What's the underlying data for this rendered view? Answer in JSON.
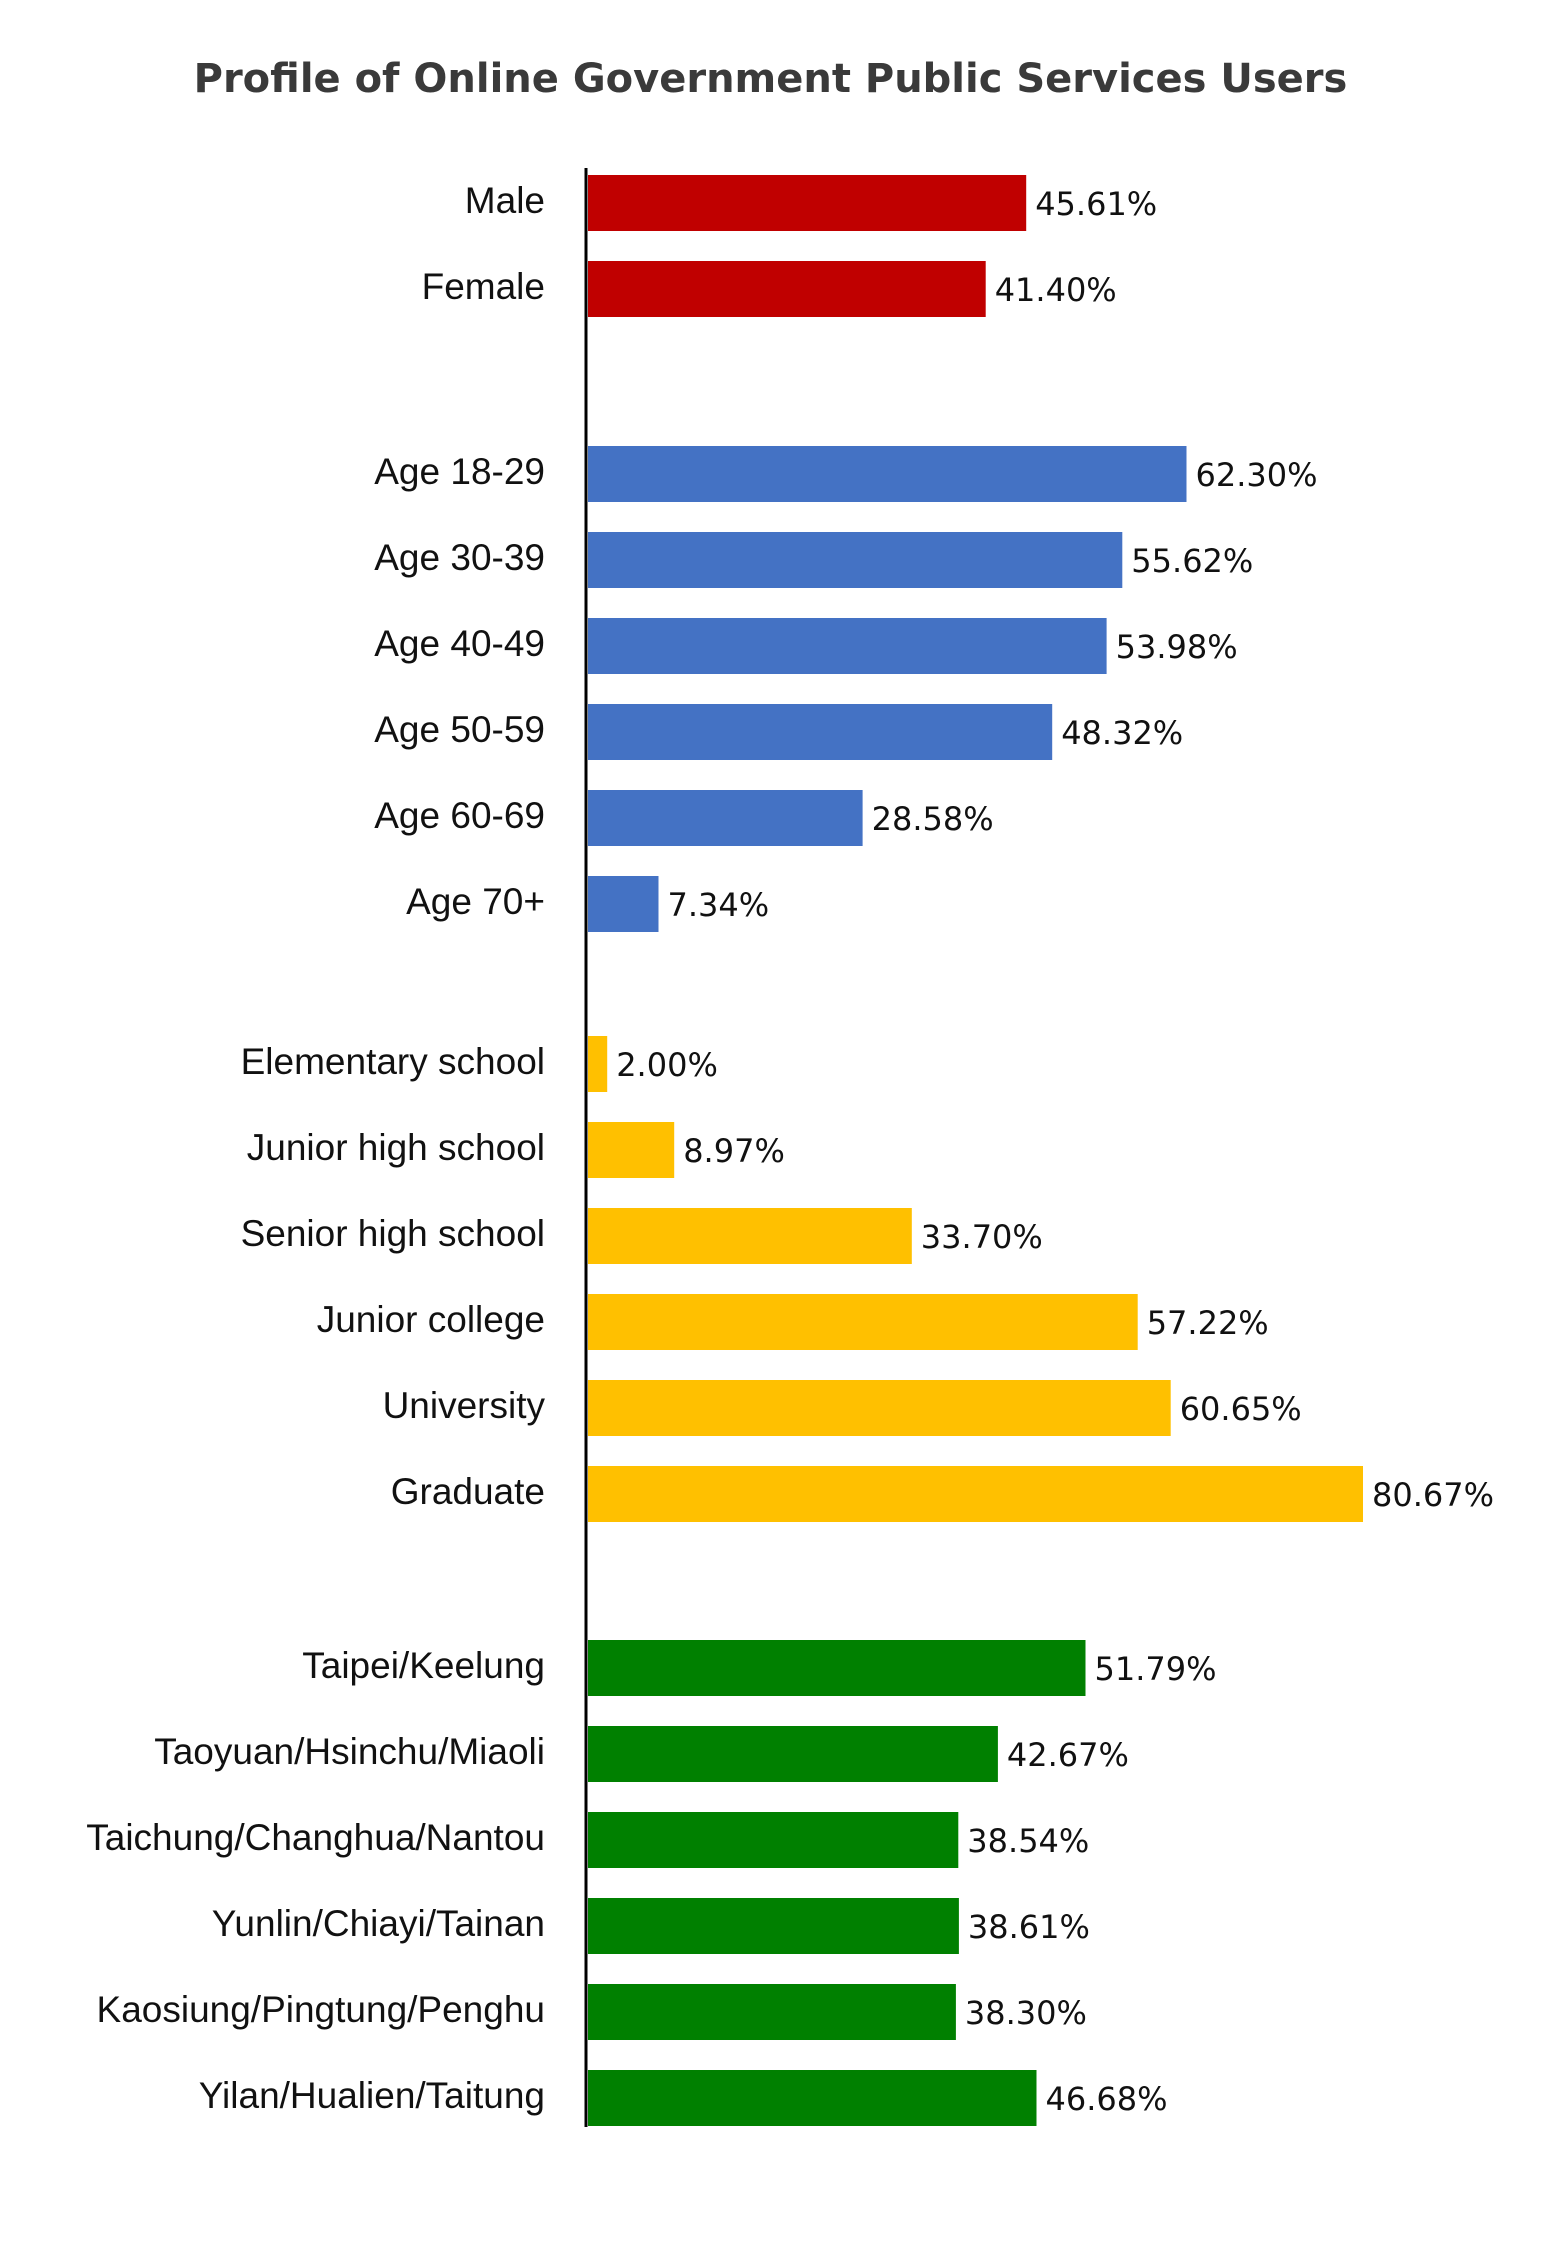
{
  "chart_data": {
    "type": "bar",
    "orientation": "horizontal",
    "title": "Profile of Online Government Public Services Users",
    "xlim": [
      0,
      85
    ],
    "grid": false,
    "legend": "none",
    "groups": [
      {
        "color": "#c00000",
        "items": [
          {
            "label": "Male",
            "value": 45.61,
            "value_label": "45.61%"
          },
          {
            "label": "Female",
            "value": 41.4,
            "value_label": "41.40%"
          }
        ]
      },
      {
        "color": "#4472c4",
        "items": [
          {
            "label": "Age 18-29",
            "value": 62.3,
            "value_label": "62.30%"
          },
          {
            "label": "Age 30-39",
            "value": 55.62,
            "value_label": "55.62%"
          },
          {
            "label": "Age 40-49",
            "value": 53.98,
            "value_label": "53.98%"
          },
          {
            "label": "Age 50-59",
            "value": 48.32,
            "value_label": "48.32%"
          },
          {
            "label": "Age 60-69",
            "value": 28.58,
            "value_label": "28.58%"
          },
          {
            "label": "Age 70+",
            "value": 7.34,
            "value_label": "7.34%"
          }
        ]
      },
      {
        "color": "#ffc000",
        "items": [
          {
            "label": "Elementary school",
            "value": 2.0,
            "value_label": "2.00%"
          },
          {
            "label": "Junior high school",
            "value": 8.97,
            "value_label": "8.97%"
          },
          {
            "label": "Senior high school",
            "value": 33.7,
            "value_label": "33.70%"
          },
          {
            "label": "Junior college",
            "value": 57.22,
            "value_label": "57.22%"
          },
          {
            "label": "University",
            "value": 60.65,
            "value_label": "60.65%"
          },
          {
            "label": "Graduate",
            "value": 80.67,
            "value_label": "80.67%"
          }
        ]
      },
      {
        "color": "#008000",
        "items": [
          {
            "label": "Taipei/Keelung",
            "value": 51.79,
            "value_label": "51.79%"
          },
          {
            "label": "Taoyuan/Hsinchu/Miaoli",
            "value": 42.67,
            "value_label": "42.67%"
          },
          {
            "label": "Taichung/Changhua/Nantou",
            "value": 38.54,
            "value_label": "38.54%"
          },
          {
            "label": "Yunlin/Chiayi/Tainan",
            "value": 38.61,
            "value_label": "38.61%"
          },
          {
            "label": "Kaosiung/Pingtung/Penghu",
            "value": 38.3,
            "value_label": "38.30%"
          },
          {
            "label": "Yilan/Hualien/Taitung",
            "value": 46.68,
            "value_label": "46.68%"
          }
        ]
      }
    ]
  }
}
